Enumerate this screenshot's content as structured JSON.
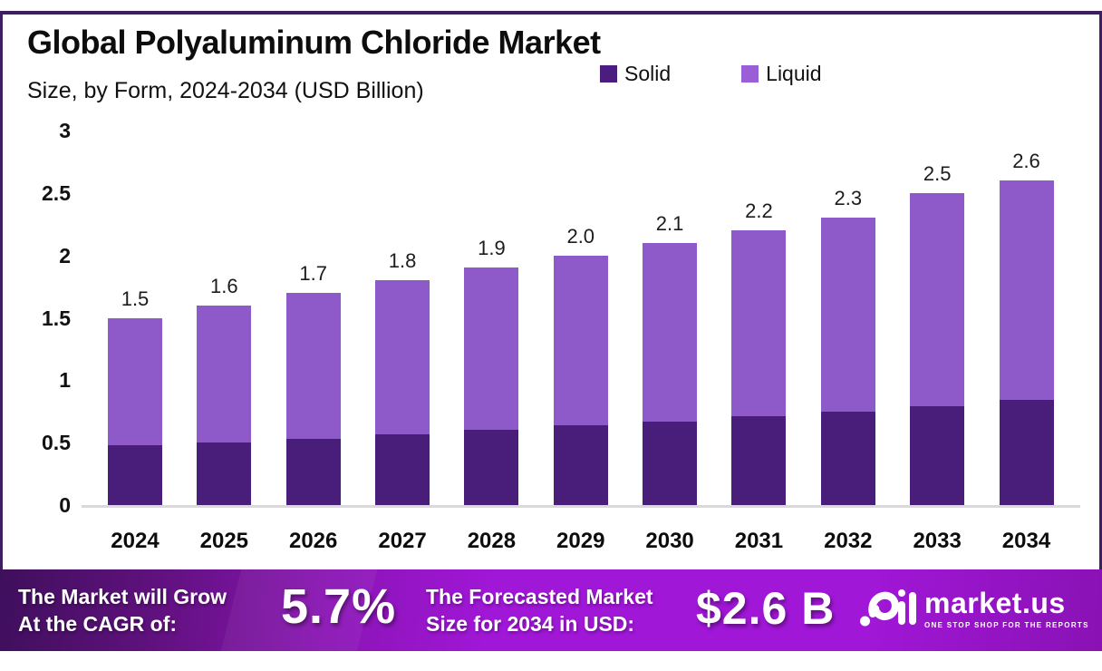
{
  "header": {
    "title": "Global Polyaluminum Chloride Market",
    "subtitle": "Size, by Form, 2024-2034 (USD Billion)"
  },
  "legend": [
    {
      "label": "Solid",
      "color": "#4A1D7E"
    },
    {
      "label": "Liquid",
      "color": "#9A5FD6"
    }
  ],
  "chart_data": {
    "type": "bar",
    "stacked": true,
    "title": "Global Polyaluminum Chloride Market",
    "subtitle": "Size, by Form, 2024-2034 (USD Billion)",
    "unit": "USD Billion",
    "categories": [
      "2024",
      "2025",
      "2026",
      "2027",
      "2028",
      "2029",
      "2030",
      "2031",
      "2032",
      "2033",
      "2034"
    ],
    "series": [
      {
        "name": "Solid",
        "color": "#491D7A",
        "values": [
          0.48,
          0.5,
          0.53,
          0.57,
          0.6,
          0.64,
          0.67,
          0.71,
          0.75,
          0.79,
          0.84
        ]
      },
      {
        "name": "Liquid",
        "color": "#8E5AC9",
        "values": [
          1.02,
          1.1,
          1.17,
          1.23,
          1.3,
          1.36,
          1.43,
          1.49,
          1.55,
          1.71,
          1.76
        ]
      }
    ],
    "total_labels": [
      "1.5",
      "1.6",
      "1.7",
      "1.8",
      "1.9",
      "2.0",
      "2.1",
      "2.2",
      "2.3",
      "2.5",
      "2.6"
    ],
    "yticks": [
      {
        "label": "3",
        "value": 3
      },
      {
        "label": "2.5",
        "value": 2.5
      },
      {
        "label": "2",
        "value": 2
      },
      {
        "label": "1.5",
        "value": 1.5
      },
      {
        "label": "1",
        "value": 1
      },
      {
        "label": "0.5",
        "value": 0.5
      },
      {
        "label": "0",
        "value": 0
      }
    ],
    "ylim": [
      0,
      3
    ],
    "grid": false,
    "legend_position": "top-right"
  },
  "banner": {
    "cagr_label_line1": "The Market will Grow",
    "cagr_label_line2": "At the CAGR of:",
    "cagr_value": "5.7%",
    "forecast_label_line1": "The Forecasted Market",
    "forecast_label_line2": "Size for 2034 in USD:",
    "forecast_value": "$2.6 B",
    "logo_name": "market.us",
    "logo_tagline": "ONE STOP SHOP FOR THE REPORTS"
  },
  "colors": {
    "frame_border": "#3B1F5E",
    "solid_bar": "#491D7A",
    "liquid_bar": "#8E5AC9",
    "banner_gradient_start": "#3F0F5C",
    "banner_gradient_mid": "#A117D8",
    "banner_gradient_end": "#8912B4",
    "axis_line": "#D9D9D9"
  }
}
